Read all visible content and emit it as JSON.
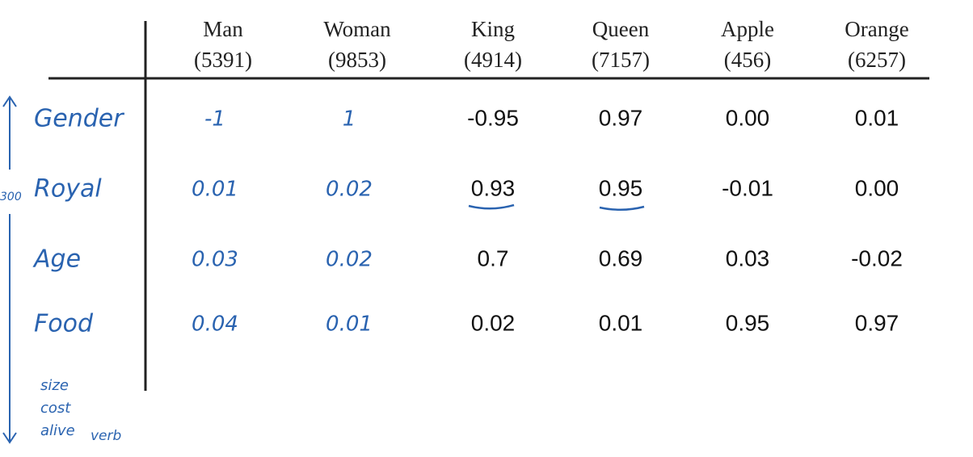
{
  "header": {
    "columns": [
      {
        "word": "Man",
        "index": "(5391)"
      },
      {
        "word": "Woman",
        "index": "(9853)"
      },
      {
        "word": "King",
        "index": "(4914)"
      },
      {
        "word": "Queen",
        "index": "(7157)"
      },
      {
        "word": "Apple",
        "index": "(456)"
      },
      {
        "word": "Orange",
        "index": "(6257)"
      }
    ]
  },
  "rows": [
    {
      "label": "Gender",
      "cells": [
        "-1",
        "1",
        "-0.95",
        "0.97",
        "0.00",
        "0.01"
      ]
    },
    {
      "label": "Royal",
      "cells": [
        "0.01",
        "0.02",
        "0.93",
        "0.95",
        "-0.01",
        "0.00"
      ]
    },
    {
      "label": "Age",
      "cells": [
        "0.03",
        "0.02",
        "0.7",
        "0.69",
        "0.03",
        "-0.02"
      ]
    },
    {
      "label": "Food",
      "cells": [
        "0.04",
        "0.01",
        "0.02",
        "0.01",
        "0.95",
        "0.97"
      ]
    }
  ],
  "annotations": {
    "dimension": "300",
    "more_features": [
      "size",
      "cost",
      "alive"
    ],
    "extra": "verb"
  }
}
